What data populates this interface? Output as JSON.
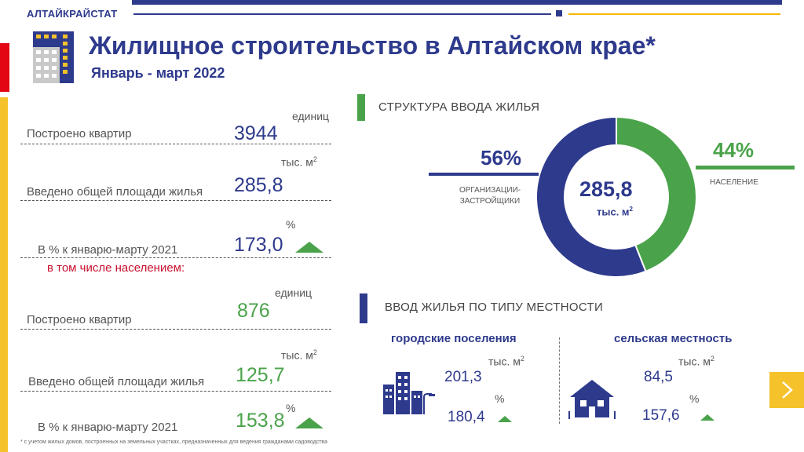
{
  "header": {
    "brand": "АЛТАЙКРАЙСТАТ",
    "title": "Жилищное строительство в Алтайском крае*",
    "subtitle": "Январь - март 2022"
  },
  "left_stats": {
    "total": {
      "apartments_label": "Построено квартир",
      "apartments_unit": "единиц",
      "apartments_value": "3944",
      "area_label": "Введено общей площади жилья",
      "area_unit": "тыс. м",
      "area_value": "285,8",
      "pct_label": "В % к январю-марту 2021",
      "pct_unit": "%",
      "pct_value": "173,0"
    },
    "population_heading": "в том числе населением:",
    "population": {
      "apartments_label": "Построено квартир",
      "apartments_unit": "единиц",
      "apartments_value": "876",
      "area_label": "Введено общей площади жилья",
      "area_unit": "тыс. м",
      "area_value": "125,7",
      "pct_label": "В % к январю-марту 2021",
      "pct_unit": "%",
      "pct_value": "153,8"
    }
  },
  "structure": {
    "title": "СТРУКТУРА ВВОДА ЖИЛЬЯ",
    "center_value": "285,8",
    "center_unit": "тыс. м",
    "org_pct": "56%",
    "org_label_1": "ОРГАНИЗАЦИИ-",
    "org_label_2": "ЗАСТРОЙЩИКИ",
    "pop_pct": "44%",
    "pop_label": "НАСЕЛЕНИЕ",
    "colors": {
      "org": "#2e3a8c",
      "pop": "#4aa34a"
    }
  },
  "chart_data": {
    "type": "pie",
    "categories": [
      "ОРГАНИЗАЦИИ-ЗАСТРОЙЩИКИ",
      "НАСЕЛЕНИЕ"
    ],
    "values": [
      56,
      44
    ]
  },
  "locality": {
    "title": "ВВОД ЖИЛЬЯ ПО ТИПУ МЕСТНОСТИ",
    "urban": {
      "label": "городские поселения",
      "unit": "тыс. м",
      "value": "201,3",
      "pct_unit": "%",
      "pct_value": "180,4"
    },
    "rural": {
      "label": "сельская местность",
      "unit": "тыс. м",
      "value": "84,5",
      "pct_unit": "%",
      "pct_value": "157,6"
    }
  },
  "footnote": "* с учетом жилых домов, построенных на земельных участках, предназначенных для ведения гражданами садоводства",
  "superscript": "2"
}
